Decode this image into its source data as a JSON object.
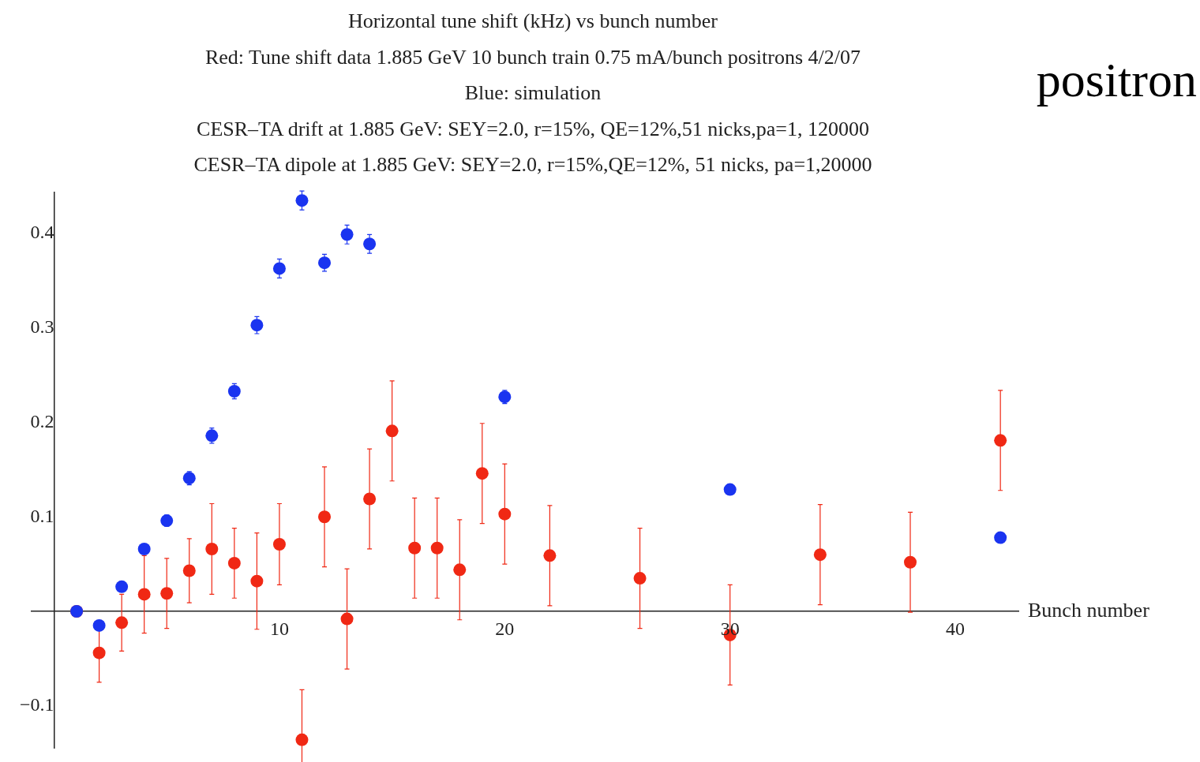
{
  "chart_data": {
    "type": "scatter",
    "title": "Horizontal tune shift (kHz) vs bunch number",
    "subtitle": "Red: Tune shift data 1.885 GeV 10 bunch train 0.75 mA/bunch  positrons 4/2/07\nBlue: simulation\nCESR–TA drift at 1.885 GeV: SEY=2.0, r=15%, QE=12%,51 nicks,pa=1, 120000\nCESR–TA dipole at 1.885 GeV: SEY=2.0, r=15%,QE=12%, 51 nicks, pa=1,20000",
    "xlabel": "Bunch number",
    "annotations": [
      "positron"
    ],
    "xlim": [
      -1,
      42.8
    ],
    "ylim": [
      -0.145,
      0.444
    ],
    "xticks": [
      10,
      20,
      30,
      40
    ],
    "yticks": [
      {
        "value": -0.1,
        "label": "−0.1"
      },
      0.1,
      0.2,
      0.3,
      0.4
    ],
    "grid": false,
    "legend": false,
    "marker": "circle",
    "series": [
      {
        "color": "#1a34f0",
        "x": [
          1,
          2,
          3,
          4,
          5,
          6,
          7,
          8,
          9,
          10,
          11,
          12,
          13,
          14,
          20,
          30,
          42
        ],
        "values": [
          0,
          -0.015,
          0.026,
          0.066,
          0.096,
          0.141,
          0.186,
          0.233,
          0.303,
          0.363,
          0.435,
          0.369,
          0.399,
          0.389,
          0.227,
          0.129,
          0.078
        ],
        "errors": [
          null,
          null,
          null,
          null,
          0.006,
          0.007,
          0.008,
          0.008,
          0.009,
          0.01,
          0.01,
          0.009,
          0.01,
          0.01,
          0.007,
          null,
          null
        ]
      },
      {
        "color": "#f02814",
        "x": [
          1,
          2,
          3,
          4,
          5,
          6,
          7,
          8,
          9,
          10,
          11,
          12,
          13,
          14,
          15,
          16,
          17,
          18,
          19,
          20,
          22,
          26,
          30,
          34,
          38,
          42
        ],
        "values": [
          0,
          -0.044,
          -0.012,
          0.018,
          0.019,
          0.043,
          0.066,
          0.051,
          0.032,
          0.071,
          -0.136,
          0.1,
          -0.008,
          0.119,
          0.191,
          0.067,
          0.067,
          0.044,
          0.146,
          0.103,
          0.059,
          0.035,
          -0.025,
          0.06,
          0.052,
          0.181
        ],
        "errors": [
          null,
          0.031,
          0.03,
          0.041,
          0.037,
          0.034,
          0.048,
          0.037,
          0.051,
          0.043,
          0.053,
          0.053,
          0.053,
          0.053,
          0.053,
          0.053,
          0.053,
          0.053,
          0.053,
          0.053,
          0.053,
          0.053,
          0.053,
          0.053,
          0.053,
          0.053
        ]
      }
    ]
  }
}
